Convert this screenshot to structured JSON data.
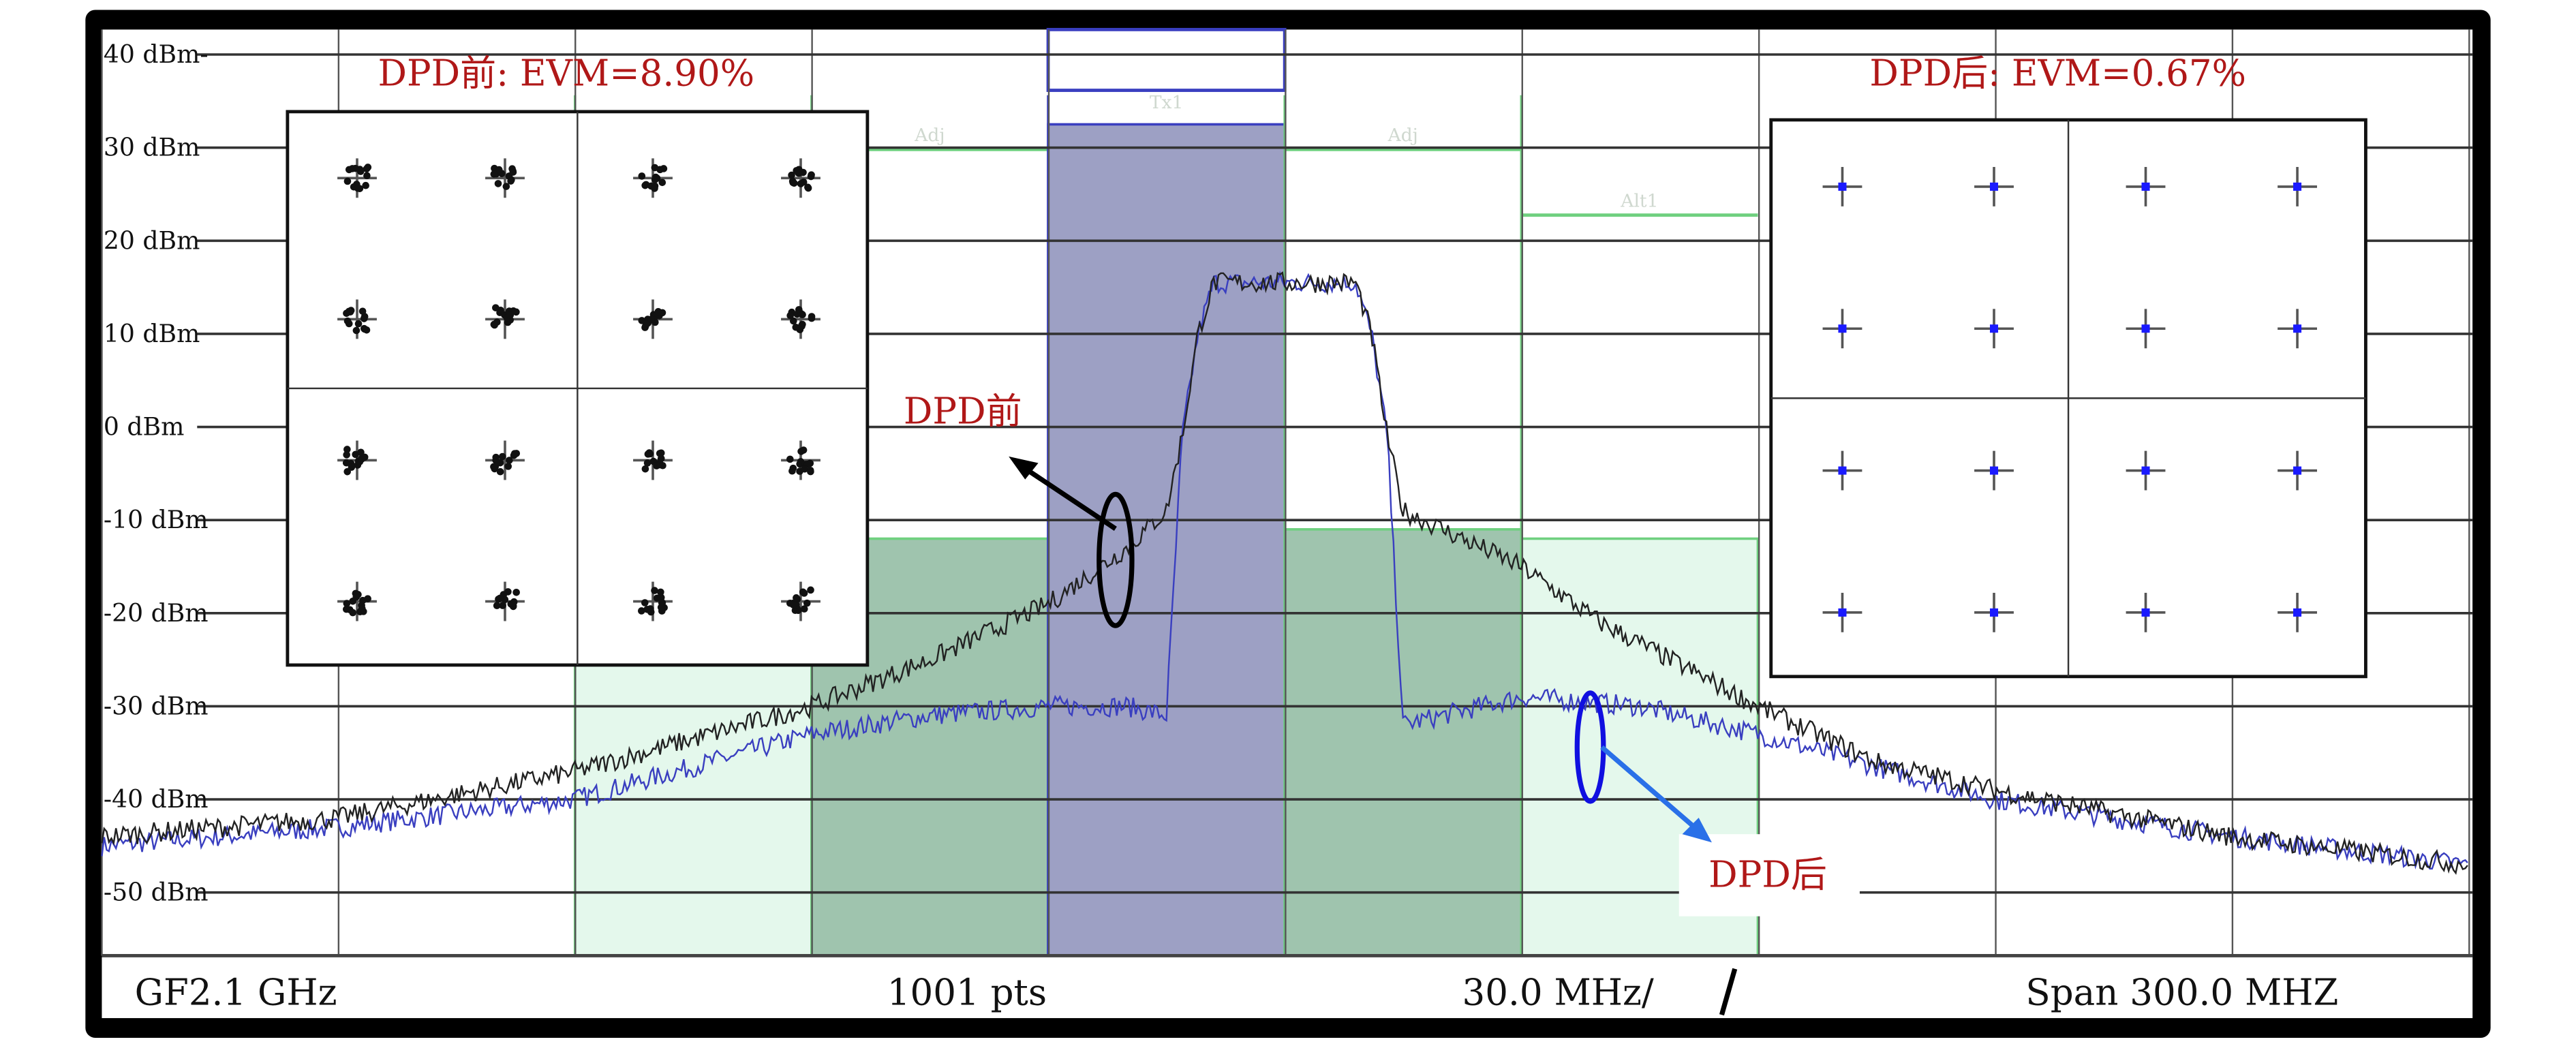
{
  "chart_data": {
    "type": "line",
    "title": "",
    "xlabel": "",
    "ylabel": "",
    "ylim": [
      -57,
      42
    ],
    "xlim": [
      -150,
      150
    ],
    "y_ticks": [
      {
        "value": 40,
        "label": "40 dBm-"
      },
      {
        "value": 30,
        "label": "30 dBm"
      },
      {
        "value": 20,
        "label": "20 dBm"
      },
      {
        "value": 10,
        "label": "10 dBm"
      },
      {
        "value": 0,
        "label": "0 dBm"
      },
      {
        "value": -10,
        "label": "-10 dBm"
      },
      {
        "value": -20,
        "label": "-20 dBm"
      },
      {
        "value": -30,
        "label": "-30 dBm"
      },
      {
        "value": -40,
        "label": "-40 dBm"
      },
      {
        "value": -50,
        "label": "-50 dBm"
      }
    ],
    "grid": true,
    "footer": {
      "center_freq": "GF2.1 GHz",
      "points": "1001 pts",
      "per_div": "30.0 MHz/",
      "span": "Span 300.0 MHZ"
    },
    "channels": [
      {
        "label": "Alt1",
        "from": -90,
        "to": -60,
        "level": -12,
        "color": "#e4f8ec"
      },
      {
        "label": "Adj",
        "from": -60,
        "to": -30,
        "level": -12,
        "color": "#9fc4ae"
      },
      {
        "label": "Tx1",
        "from": -30,
        "to": 0,
        "level": 32.5,
        "color": "#9da0c4"
      },
      {
        "label": "Adj",
        "from": 0,
        "to": 30,
        "level": -11,
        "color": "#9fc4ae"
      },
      {
        "label": "Alt1",
        "from": 30,
        "to": 60,
        "level": -12,
        "color": "#e4f8ec"
      }
    ],
    "series": [
      {
        "name": "DPD前",
        "color": "#222222",
        "x": [
          -150,
          -120,
          -90,
          -60,
          -45,
          -30,
          -20,
          -15,
          -13,
          -11,
          -9,
          9,
          11,
          13,
          15,
          20,
          30,
          40,
          60,
          75,
          90,
          120,
          150
        ],
        "y": [
          -44,
          -42,
          -37,
          -30,
          -25,
          -19,
          -13,
          -9,
          -1,
          10,
          15.5,
          15.5,
          10,
          -1,
          -9,
          -11,
          -15,
          -21,
          -30,
          -36,
          -39,
          -44,
          -47
        ]
      },
      {
        "name": "DPD后",
        "color": "#3a3fc0",
        "x": [
          -150,
          -120,
          -90,
          -60,
          -45,
          -30,
          -20,
          -15,
          -13,
          -11,
          -9,
          9,
          11,
          13,
          15,
          20,
          30,
          45,
          60,
          90,
          120,
          150
        ],
        "y": [
          -45,
          -43,
          -40,
          -33,
          -31,
          -30,
          -30,
          -31,
          -1,
          10,
          15.5,
          15.5,
          10,
          -1,
          -32,
          -31,
          -29,
          -30,
          -33,
          -40,
          -44,
          -47
        ]
      }
    ],
    "annotations": {
      "before_title": "DPD前: EVM=8.90%",
      "after_title": "DPD后: EVM=0.67%",
      "before_label": "DPD前",
      "after_label": "DPD后"
    }
  }
}
